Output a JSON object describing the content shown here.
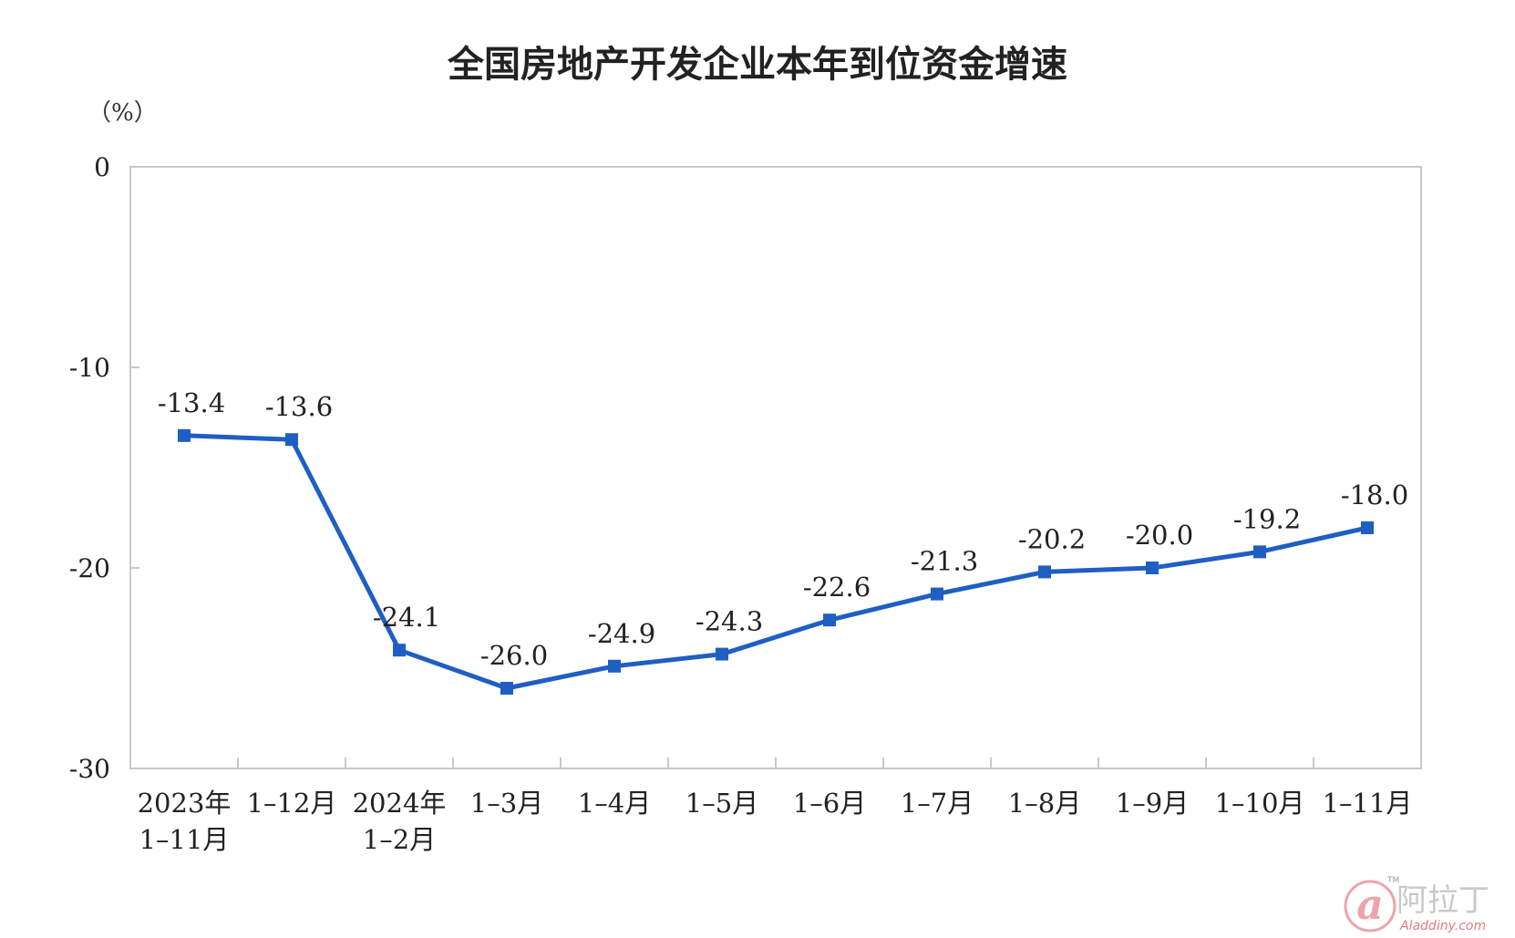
{
  "chart_data": {
    "type": "line",
    "title": "全国房地产开发企业本年到位资金增速",
    "unit_label": "（%）",
    "categories": [
      [
        "2023年",
        "1–11月"
      ],
      [
        "1–12月"
      ],
      [
        "2024年",
        "1–2月"
      ],
      [
        "1–3月"
      ],
      [
        "1–4月"
      ],
      [
        "1–5月"
      ],
      [
        "1–6月"
      ],
      [
        "1–7月"
      ],
      [
        "1–8月"
      ],
      [
        "1–9月"
      ],
      [
        "1–10月"
      ],
      [
        "1–11月"
      ]
    ],
    "values": [
      -13.4,
      -13.6,
      -24.1,
      -26.0,
      -24.9,
      -24.3,
      -22.6,
      -21.3,
      -20.2,
      -20.0,
      -19.2,
      -18.0
    ],
    "data_labels": [
      "-13.4",
      "-13.6",
      "-24.1",
      "-26.0",
      "-24.9",
      "-24.3",
      "-22.6",
      "-21.3",
      "-20.2",
      "-20.0",
      "-19.2",
      "-18.0"
    ],
    "yticks": [
      0,
      -10,
      -20,
      -30
    ],
    "ytick_labels": [
      "0",
      "-10",
      "-20",
      "-30"
    ],
    "ylim": [
      -30,
      0
    ],
    "xlabel": "",
    "ylabel": "",
    "grid": false,
    "legend": "none",
    "line_color": "#1f5fc4",
    "marker": "square"
  },
  "watermark": {
    "glyph": "a",
    "cn_text": "阿拉丁",
    "en_text": "Aladdiny.com",
    "tm": "TM",
    "color_pink": "#e05a6a",
    "color_gray": "#c4c4c4"
  }
}
